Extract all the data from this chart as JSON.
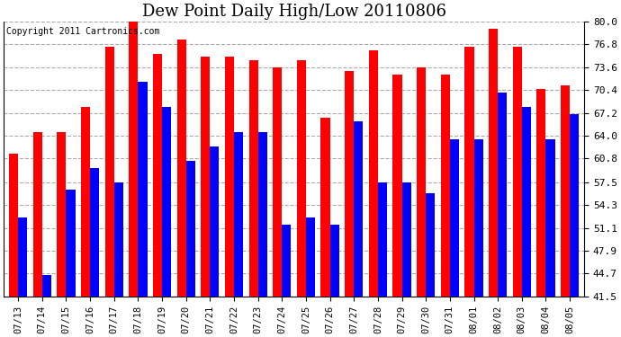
{
  "title": "Dew Point Daily High/Low 20110806",
  "copyright": "Copyright 2011 Cartronics.com",
  "dates": [
    "07/13",
    "07/14",
    "07/15",
    "07/16",
    "07/17",
    "07/18",
    "07/19",
    "07/20",
    "07/21",
    "07/22",
    "07/23",
    "07/24",
    "07/25",
    "07/26",
    "07/27",
    "07/28",
    "07/29",
    "07/30",
    "07/31",
    "08/01",
    "08/02",
    "08/03",
    "08/04",
    "08/05"
  ],
  "highs": [
    61.5,
    64.5,
    64.5,
    68.0,
    76.5,
    80.5,
    75.5,
    77.5,
    75.0,
    75.0,
    74.5,
    73.5,
    74.5,
    66.5,
    73.0,
    76.0,
    72.5,
    73.5,
    72.5,
    76.5,
    79.0,
    76.5,
    70.5,
    71.0
  ],
  "lows": [
    52.5,
    44.5,
    56.5,
    59.5,
    57.5,
    71.5,
    68.0,
    60.5,
    62.5,
    64.5,
    64.5,
    51.5,
    52.5,
    51.5,
    66.0,
    57.5,
    57.5,
    56.0,
    63.5,
    63.5,
    70.0,
    68.0,
    63.5,
    67.0
  ],
  "high_color": "#ff0000",
  "low_color": "#0000ff",
  "bg_color": "#ffffff",
  "ymin": 41.5,
  "ymax": 80.0,
  "yticks": [
    41.5,
    44.7,
    47.9,
    51.1,
    54.3,
    57.5,
    60.8,
    64.0,
    67.2,
    70.4,
    73.6,
    76.8,
    80.0
  ],
  "title_fontsize": 13,
  "copyright_fontsize": 7,
  "bar_width": 0.38
}
